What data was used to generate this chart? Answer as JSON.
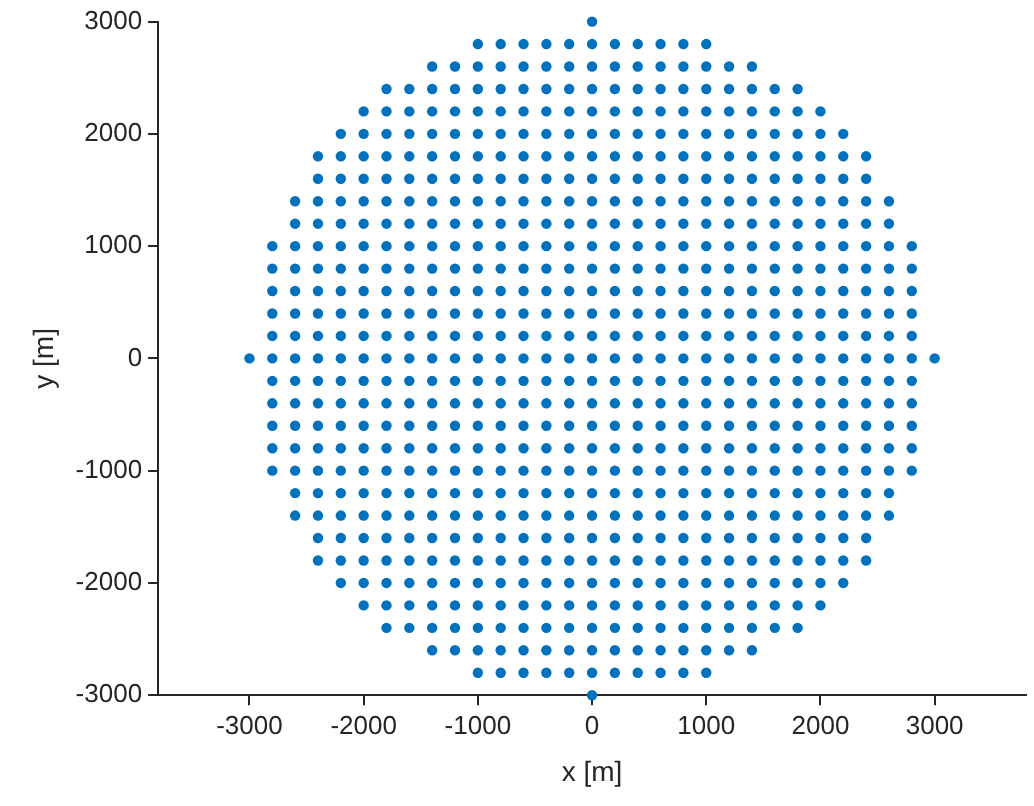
{
  "chart_data": {
    "type": "scatter",
    "xlabel": "x [m]",
    "ylabel": "y [m]",
    "xlim": [
      -3800,
      3800
    ],
    "xticks": [
      -3000,
      -2000,
      -1000,
      0,
      1000,
      2000,
      3000
    ],
    "ylim": [
      -3000,
      3000
    ],
    "yticks": [
      -3000,
      -2000,
      -1000,
      0,
      1000,
      2000,
      3000
    ],
    "grid": false,
    "legend": false,
    "marker": "circle",
    "series": [
      {
        "color": "#0072bd",
        "x": [
          0
        ],
        "values": [
          3000
        ]
      },
      {
        "color": "#0072bd",
        "x": [
          -1000,
          -800,
          -600,
          -400,
          -200,
          0,
          200,
          400,
          600,
          800,
          1000
        ],
        "values": [
          2800,
          2800,
          2800,
          2800,
          2800,
          2800,
          2800,
          2800,
          2800,
          2800,
          2800
        ]
      },
      {
        "color": "#0072bd",
        "x": [
          -1400,
          -1200,
          -1000,
          -800,
          -600,
          -400,
          -200,
          0,
          200,
          400,
          600,
          800,
          1000,
          1200,
          1400
        ],
        "values": [
          2600,
          2600,
          2600,
          2600,
          2600,
          2600,
          2600,
          2600,
          2600,
          2600,
          2600,
          2600,
          2600,
          2600,
          2600
        ]
      },
      {
        "color": "#0072bd",
        "x": [
          -1800,
          -1600,
          -1400,
          -1200,
          -1000,
          -800,
          -600,
          -400,
          -200,
          0,
          200,
          400,
          600,
          800,
          1000,
          1200,
          1400,
          1600,
          1800
        ],
        "values": [
          2400,
          2400,
          2400,
          2400,
          2400,
          2400,
          2400,
          2400,
          2400,
          2400,
          2400,
          2400,
          2400,
          2400,
          2400,
          2400,
          2400,
          2400,
          2400
        ]
      },
      {
        "color": "#0072bd",
        "x": [
          -2000,
          -1800,
          -1600,
          -1400,
          -1200,
          -1000,
          -800,
          -600,
          -400,
          -200,
          0,
          200,
          400,
          600,
          800,
          1000,
          1200,
          1400,
          1600,
          1800,
          2000
        ],
        "values": [
          2200,
          2200,
          2200,
          2200,
          2200,
          2200,
          2200,
          2200,
          2200,
          2200,
          2200,
          2200,
          2200,
          2200,
          2200,
          2200,
          2200,
          2200,
          2200,
          2200,
          2200
        ]
      },
      {
        "color": "#0072bd",
        "x": [
          -2200,
          -2000,
          -1800,
          -1600,
          -1400,
          -1200,
          -1000,
          -800,
          -600,
          -400,
          -200,
          0,
          200,
          400,
          600,
          800,
          1000,
          1200,
          1400,
          1600,
          1800,
          2000,
          2200
        ],
        "values": [
          2000,
          2000,
          2000,
          2000,
          2000,
          2000,
          2000,
          2000,
          2000,
          2000,
          2000,
          2000,
          2000,
          2000,
          2000,
          2000,
          2000,
          2000,
          2000,
          2000,
          2000,
          2000,
          2000
        ]
      },
      {
        "color": "#0072bd",
        "x": [
          -2400,
          -2200,
          -2000,
          -1800,
          -1600,
          -1400,
          -1200,
          -1000,
          -800,
          -600,
          -400,
          -200,
          0,
          200,
          400,
          600,
          800,
          1000,
          1200,
          1400,
          1600,
          1800,
          2000,
          2200,
          2400
        ],
        "values": [
          1800,
          1800,
          1800,
          1800,
          1800,
          1800,
          1800,
          1800,
          1800,
          1800,
          1800,
          1800,
          1800,
          1800,
          1800,
          1800,
          1800,
          1800,
          1800,
          1800,
          1800,
          1800,
          1800,
          1800,
          1800
        ]
      },
      {
        "color": "#0072bd",
        "x": [
          -2400,
          -2200,
          -2000,
          -1800,
          -1600,
          -1400,
          -1200,
          -1000,
          -800,
          -600,
          -400,
          -200,
          0,
          200,
          400,
          600,
          800,
          1000,
          1200,
          1400,
          1600,
          1800,
          2000,
          2200,
          2400
        ],
        "values": [
          1600,
          1600,
          1600,
          1600,
          1600,
          1600,
          1600,
          1600,
          1600,
          1600,
          1600,
          1600,
          1600,
          1600,
          1600,
          1600,
          1600,
          1600,
          1600,
          1600,
          1600,
          1600,
          1600,
          1600,
          1600
        ]
      },
      {
        "color": "#0072bd",
        "x": [
          -2600,
          -2400,
          -2200,
          -2000,
          -1800,
          -1600,
          -1400,
          -1200,
          -1000,
          -800,
          -600,
          -400,
          -200,
          0,
          200,
          400,
          600,
          800,
          1000,
          1200,
          1400,
          1600,
          1800,
          2000,
          2200,
          2400,
          2600
        ],
        "values": [
          1400,
          1400,
          1400,
          1400,
          1400,
          1400,
          1400,
          1400,
          1400,
          1400,
          1400,
          1400,
          1400,
          1400,
          1400,
          1400,
          1400,
          1400,
          1400,
          1400,
          1400,
          1400,
          1400,
          1400,
          1400,
          1400,
          1400
        ]
      },
      {
        "color": "#0072bd",
        "x": [
          -2600,
          -2400,
          -2200,
          -2000,
          -1800,
          -1600,
          -1400,
          -1200,
          -1000,
          -800,
          -600,
          -400,
          -200,
          0,
          200,
          400,
          600,
          800,
          1000,
          1200,
          1400,
          1600,
          1800,
          2000,
          2200,
          2400,
          2600
        ],
        "values": [
          1200,
          1200,
          1200,
          1200,
          1200,
          1200,
          1200,
          1200,
          1200,
          1200,
          1200,
          1200,
          1200,
          1200,
          1200,
          1200,
          1200,
          1200,
          1200,
          1200,
          1200,
          1200,
          1200,
          1200,
          1200,
          1200,
          1200
        ]
      },
      {
        "color": "#0072bd",
        "x": [
          -2800,
          -2600,
          -2400,
          -2200,
          -2000,
          -1800,
          -1600,
          -1400,
          -1200,
          -1000,
          -800,
          -600,
          -400,
          -200,
          0,
          200,
          400,
          600,
          800,
          1000,
          1200,
          1400,
          1600,
          1800,
          2000,
          2200,
          2400,
          2600,
          2800
        ],
        "values": [
          1000,
          1000,
          1000,
          1000,
          1000,
          1000,
          1000,
          1000,
          1000,
          1000,
          1000,
          1000,
          1000,
          1000,
          1000,
          1000,
          1000,
          1000,
          1000,
          1000,
          1000,
          1000,
          1000,
          1000,
          1000,
          1000,
          1000,
          1000,
          1000
        ]
      },
      {
        "color": "#0072bd",
        "x": [
          -2800,
          -2600,
          -2400,
          -2200,
          -2000,
          -1800,
          -1600,
          -1400,
          -1200,
          -1000,
          -800,
          -600,
          -400,
          -200,
          0,
          200,
          400,
          600,
          800,
          1000,
          1200,
          1400,
          1600,
          1800,
          2000,
          2200,
          2400,
          2600,
          2800
        ],
        "values": [
          800,
          800,
          800,
          800,
          800,
          800,
          800,
          800,
          800,
          800,
          800,
          800,
          800,
          800,
          800,
          800,
          800,
          800,
          800,
          800,
          800,
          800,
          800,
          800,
          800,
          800,
          800,
          800,
          800
        ]
      },
      {
        "color": "#0072bd",
        "x": [
          -2800,
          -2600,
          -2400,
          -2200,
          -2000,
          -1800,
          -1600,
          -1400,
          -1200,
          -1000,
          -800,
          -600,
          -400,
          -200,
          0,
          200,
          400,
          600,
          800,
          1000,
          1200,
          1400,
          1600,
          1800,
          2000,
          2200,
          2400,
          2600,
          2800
        ],
        "values": [
          600,
          600,
          600,
          600,
          600,
          600,
          600,
          600,
          600,
          600,
          600,
          600,
          600,
          600,
          600,
          600,
          600,
          600,
          600,
          600,
          600,
          600,
          600,
          600,
          600,
          600,
          600,
          600,
          600
        ]
      },
      {
        "color": "#0072bd",
        "x": [
          -2800,
          -2600,
          -2400,
          -2200,
          -2000,
          -1800,
          -1600,
          -1400,
          -1200,
          -1000,
          -800,
          -600,
          -400,
          -200,
          0,
          200,
          400,
          600,
          800,
          1000,
          1200,
          1400,
          1600,
          1800,
          2000,
          2200,
          2400,
          2600,
          2800
        ],
        "values": [
          400,
          400,
          400,
          400,
          400,
          400,
          400,
          400,
          400,
          400,
          400,
          400,
          400,
          400,
          400,
          400,
          400,
          400,
          400,
          400,
          400,
          400,
          400,
          400,
          400,
          400,
          400,
          400,
          400
        ]
      },
      {
        "color": "#0072bd",
        "x": [
          -2800,
          -2600,
          -2400,
          -2200,
          -2000,
          -1800,
          -1600,
          -1400,
          -1200,
          -1000,
          -800,
          -600,
          -400,
          -200,
          0,
          200,
          400,
          600,
          800,
          1000,
          1200,
          1400,
          1600,
          1800,
          2000,
          2200,
          2400,
          2600,
          2800
        ],
        "values": [
          200,
          200,
          200,
          200,
          200,
          200,
          200,
          200,
          200,
          200,
          200,
          200,
          200,
          200,
          200,
          200,
          200,
          200,
          200,
          200,
          200,
          200,
          200,
          200,
          200,
          200,
          200,
          200,
          200
        ]
      },
      {
        "color": "#0072bd",
        "x": [
          -3000,
          -2800,
          -2600,
          -2400,
          -2200,
          -2000,
          -1800,
          -1600,
          -1400,
          -1200,
          -1000,
          -800,
          -600,
          -400,
          -200,
          0,
          200,
          400,
          600,
          800,
          1000,
          1200,
          1400,
          1600,
          1800,
          2000,
          2200,
          2400,
          2600,
          2800,
          3000
        ],
        "values": [
          0,
          0,
          0,
          0,
          0,
          0,
          0,
          0,
          0,
          0,
          0,
          0,
          0,
          0,
          0,
          0,
          0,
          0,
          0,
          0,
          0,
          0,
          0,
          0,
          0,
          0,
          0,
          0,
          0,
          0,
          0
        ]
      },
      {
        "color": "#0072bd",
        "x": [
          -2800,
          -2600,
          -2400,
          -2200,
          -2000,
          -1800,
          -1600,
          -1400,
          -1200,
          -1000,
          -800,
          -600,
          -400,
          -200,
          0,
          200,
          400,
          600,
          800,
          1000,
          1200,
          1400,
          1600,
          1800,
          2000,
          2200,
          2400,
          2600,
          2800
        ],
        "values": [
          -200,
          -200,
          -200,
          -200,
          -200,
          -200,
          -200,
          -200,
          -200,
          -200,
          -200,
          -200,
          -200,
          -200,
          -200,
          -200,
          -200,
          -200,
          -200,
          -200,
          -200,
          -200,
          -200,
          -200,
          -200,
          -200,
          -200,
          -200,
          -200
        ]
      },
      {
        "color": "#0072bd",
        "x": [
          -2800,
          -2600,
          -2400,
          -2200,
          -2000,
          -1800,
          -1600,
          -1400,
          -1200,
          -1000,
          -800,
          -600,
          -400,
          -200,
          0,
          200,
          400,
          600,
          800,
          1000,
          1200,
          1400,
          1600,
          1800,
          2000,
          2200,
          2400,
          2600,
          2800
        ],
        "values": [
          -400,
          -400,
          -400,
          -400,
          -400,
          -400,
          -400,
          -400,
          -400,
          -400,
          -400,
          -400,
          -400,
          -400,
          -400,
          -400,
          -400,
          -400,
          -400,
          -400,
          -400,
          -400,
          -400,
          -400,
          -400,
          -400,
          -400,
          -400,
          -400
        ]
      },
      {
        "color": "#0072bd",
        "x": [
          -2800,
          -2600,
          -2400,
          -2200,
          -2000,
          -1800,
          -1600,
          -1400,
          -1200,
          -1000,
          -800,
          -600,
          -400,
          -200,
          0,
          200,
          400,
          600,
          800,
          1000,
          1200,
          1400,
          1600,
          1800,
          2000,
          2200,
          2400,
          2600,
          2800
        ],
        "values": [
          -600,
          -600,
          -600,
          -600,
          -600,
          -600,
          -600,
          -600,
          -600,
          -600,
          -600,
          -600,
          -600,
          -600,
          -600,
          -600,
          -600,
          -600,
          -600,
          -600,
          -600,
          -600,
          -600,
          -600,
          -600,
          -600,
          -600,
          -600,
          -600
        ]
      },
      {
        "color": "#0072bd",
        "x": [
          -2800,
          -2600,
          -2400,
          -2200,
          -2000,
          -1800,
          -1600,
          -1400,
          -1200,
          -1000,
          -800,
          -600,
          -400,
          -200,
          0,
          200,
          400,
          600,
          800,
          1000,
          1200,
          1400,
          1600,
          1800,
          2000,
          2200,
          2400,
          2600,
          2800
        ],
        "values": [
          -800,
          -800,
          -800,
          -800,
          -800,
          -800,
          -800,
          -800,
          -800,
          -800,
          -800,
          -800,
          -800,
          -800,
          -800,
          -800,
          -800,
          -800,
          -800,
          -800,
          -800,
          -800,
          -800,
          -800,
          -800,
          -800,
          -800,
          -800,
          -800
        ]
      },
      {
        "color": "#0072bd",
        "x": [
          -2800,
          -2600,
          -2400,
          -2200,
          -2000,
          -1800,
          -1600,
          -1400,
          -1200,
          -1000,
          -800,
          -600,
          -400,
          -200,
          0,
          200,
          400,
          600,
          800,
          1000,
          1200,
          1400,
          1600,
          1800,
          2000,
          2200,
          2400,
          2600,
          2800
        ],
        "values": [
          -1000,
          -1000,
          -1000,
          -1000,
          -1000,
          -1000,
          -1000,
          -1000,
          -1000,
          -1000,
          -1000,
          -1000,
          -1000,
          -1000,
          -1000,
          -1000,
          -1000,
          -1000,
          -1000,
          -1000,
          -1000,
          -1000,
          -1000,
          -1000,
          -1000,
          -1000,
          -1000,
          -1000,
          -1000
        ]
      },
      {
        "color": "#0072bd",
        "x": [
          -2600,
          -2400,
          -2200,
          -2000,
          -1800,
          -1600,
          -1400,
          -1200,
          -1000,
          -800,
          -600,
          -400,
          -200,
          0,
          200,
          400,
          600,
          800,
          1000,
          1200,
          1400,
          1600,
          1800,
          2000,
          2200,
          2400,
          2600
        ],
        "values": [
          -1200,
          -1200,
          -1200,
          -1200,
          -1200,
          -1200,
          -1200,
          -1200,
          -1200,
          -1200,
          -1200,
          -1200,
          -1200,
          -1200,
          -1200,
          -1200,
          -1200,
          -1200,
          -1200,
          -1200,
          -1200,
          -1200,
          -1200,
          -1200,
          -1200,
          -1200,
          -1200
        ]
      },
      {
        "color": "#0072bd",
        "x": [
          -2600,
          -2400,
          -2200,
          -2000,
          -1800,
          -1600,
          -1400,
          -1200,
          -1000,
          -800,
          -600,
          -400,
          -200,
          0,
          200,
          400,
          600,
          800,
          1000,
          1200,
          1400,
          1600,
          1800,
          2000,
          2200,
          2400,
          2600
        ],
        "values": [
          -1400,
          -1400,
          -1400,
          -1400,
          -1400,
          -1400,
          -1400,
          -1400,
          -1400,
          -1400,
          -1400,
          -1400,
          -1400,
          -1400,
          -1400,
          -1400,
          -1400,
          -1400,
          -1400,
          -1400,
          -1400,
          -1400,
          -1400,
          -1400,
          -1400,
          -1400,
          -1400
        ]
      },
      {
        "color": "#0072bd",
        "x": [
          -2400,
          -2200,
          -2000,
          -1800,
          -1600,
          -1400,
          -1200,
          -1000,
          -800,
          -600,
          -400,
          -200,
          0,
          200,
          400,
          600,
          800,
          1000,
          1200,
          1400,
          1600,
          1800,
          2000,
          2200,
          2400
        ],
        "values": [
          -1600,
          -1600,
          -1600,
          -1600,
          -1600,
          -1600,
          -1600,
          -1600,
          -1600,
          -1600,
          -1600,
          -1600,
          -1600,
          -1600,
          -1600,
          -1600,
          -1600,
          -1600,
          -1600,
          -1600,
          -1600,
          -1600,
          -1600,
          -1600,
          -1600
        ]
      },
      {
        "color": "#0072bd",
        "x": [
          -2400,
          -2200,
          -2000,
          -1800,
          -1600,
          -1400,
          -1200,
          -1000,
          -800,
          -600,
          -400,
          -200,
          0,
          200,
          400,
          600,
          800,
          1000,
          1200,
          1400,
          1600,
          1800,
          2000,
          2200,
          2400
        ],
        "values": [
          -1800,
          -1800,
          -1800,
          -1800,
          -1800,
          -1800,
          -1800,
          -1800,
          -1800,
          -1800,
          -1800,
          -1800,
          -1800,
          -1800,
          -1800,
          -1800,
          -1800,
          -1800,
          -1800,
          -1800,
          -1800,
          -1800,
          -1800,
          -1800,
          -1800
        ]
      },
      {
        "color": "#0072bd",
        "x": [
          -2200,
          -2000,
          -1800,
          -1600,
          -1400,
          -1200,
          -1000,
          -800,
          -600,
          -400,
          -200,
          0,
          200,
          400,
          600,
          800,
          1000,
          1200,
          1400,
          1600,
          1800,
          2000,
          2200
        ],
        "values": [
          -2000,
          -2000,
          -2000,
          -2000,
          -2000,
          -2000,
          -2000,
          -2000,
          -2000,
          -2000,
          -2000,
          -2000,
          -2000,
          -2000,
          -2000,
          -2000,
          -2000,
          -2000,
          -2000,
          -2000,
          -2000,
          -2000,
          -2000
        ]
      },
      {
        "color": "#0072bd",
        "x": [
          -2000,
          -1800,
          -1600,
          -1400,
          -1200,
          -1000,
          -800,
          -600,
          -400,
          -200,
          0,
          200,
          400,
          600,
          800,
          1000,
          1200,
          1400,
          1600,
          1800,
          2000
        ],
        "values": [
          -2200,
          -2200,
          -2200,
          -2200,
          -2200,
          -2200,
          -2200,
          -2200,
          -2200,
          -2200,
          -2200,
          -2200,
          -2200,
          -2200,
          -2200,
          -2200,
          -2200,
          -2200,
          -2200,
          -2200,
          -2200
        ]
      },
      {
        "color": "#0072bd",
        "x": [
          -1800,
          -1600,
          -1400,
          -1200,
          -1000,
          -800,
          -600,
          -400,
          -200,
          0,
          200,
          400,
          600,
          800,
          1000,
          1200,
          1400,
          1600,
          1800
        ],
        "values": [
          -2400,
          -2400,
          -2400,
          -2400,
          -2400,
          -2400,
          -2400,
          -2400,
          -2400,
          -2400,
          -2400,
          -2400,
          -2400,
          -2400,
          -2400,
          -2400,
          -2400,
          -2400,
          -2400
        ]
      },
      {
        "color": "#0072bd",
        "x": [
          -1400,
          -1200,
          -1000,
          -800,
          -600,
          -400,
          -200,
          0,
          200,
          400,
          600,
          800,
          1000,
          1200,
          1400
        ],
        "values": [
          -2600,
          -2600,
          -2600,
          -2600,
          -2600,
          -2600,
          -2600,
          -2600,
          -2600,
          -2600,
          -2600,
          -2600,
          -2600,
          -2600,
          -2600
        ]
      },
      {
        "color": "#0072bd",
        "x": [
          -1000,
          -800,
          -600,
          -400,
          -200,
          0,
          200,
          400,
          600,
          800,
          1000
        ],
        "values": [
          -2800,
          -2800,
          -2800,
          -2800,
          -2800,
          -2800,
          -2800,
          -2800,
          -2800,
          -2800,
          -2800
        ]
      },
      {
        "color": "#0072bd",
        "x": [
          0
        ],
        "values": [
          -3000
        ]
      }
    ]
  }
}
